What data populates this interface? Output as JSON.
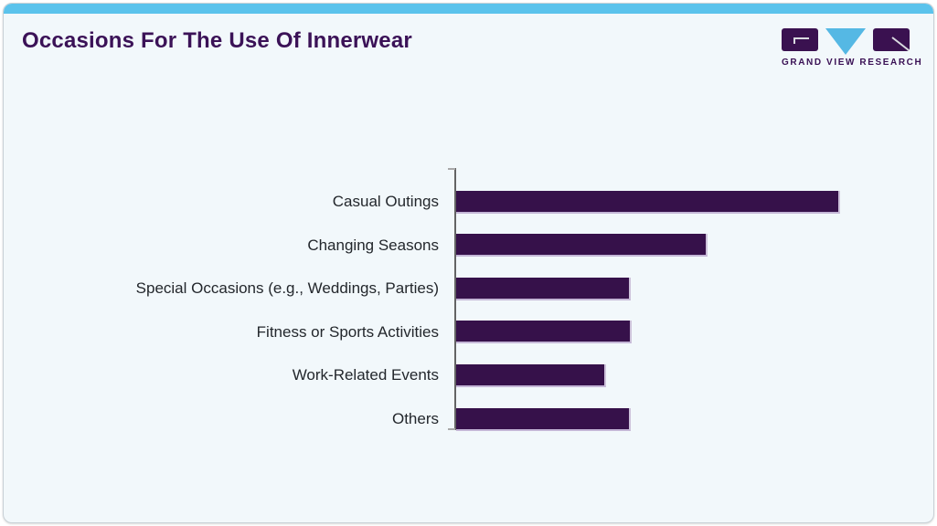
{
  "header": {
    "title": "Occasions For The Use Of Innerwear",
    "logo_text": "GRAND VIEW RESEARCH"
  },
  "colors": {
    "accent_bar": "#5bc3ec",
    "title_text": "#3b1257",
    "bar_fill": "#36114a",
    "bar_edge": "#c4b6d6",
    "axis_line": "#646464",
    "card_background": "#f2f8fb",
    "logo_purple": "#3a1150",
    "logo_blue": "#55b8e4"
  },
  "chart_data": {
    "type": "bar",
    "orientation": "horizontal",
    "title": "Occasions For The Use Of Innerwear",
    "categories": [
      "Casual Outings",
      "Changing Seasons",
      "Special Occasions (e.g., Weddings, Parties)",
      "Fitness or Sports Activities",
      "Work-Related Events",
      "Others"
    ],
    "values": [
      100,
      65.4,
      45.6,
      45.8,
      39.1,
      45.6
    ],
    "xlabel": "",
    "ylabel": "",
    "xlim": [
      0,
      121
    ],
    "grid": false,
    "legend": false,
    "value_labels_shown": false,
    "bar_color": "#36114a"
  }
}
